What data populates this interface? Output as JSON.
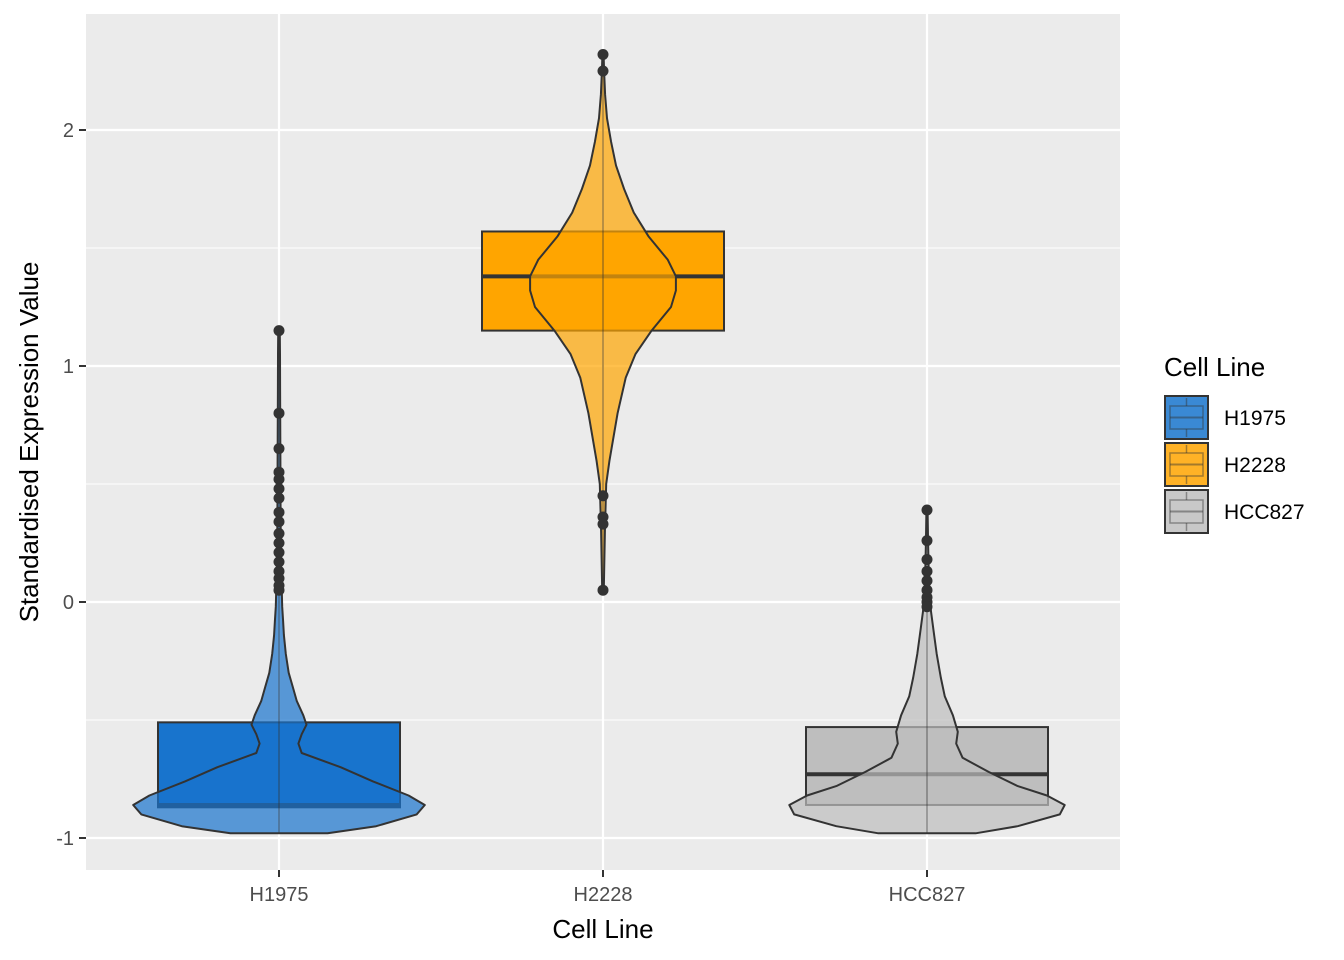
{
  "chart_data": {
    "type": "violin",
    "title": "",
    "xlabel": "Cell Line",
    "ylabel": "Standardised Expression Value",
    "categories": [
      "H1975",
      "H2228",
      "HCC827"
    ],
    "ylim": [
      -1.13,
      2.48
    ],
    "yticks": [
      -1,
      0,
      1,
      2
    ],
    "yticklabels": [
      "-1",
      "0",
      "1",
      "2"
    ],
    "grid": true,
    "legend": {
      "title": "Cell Line",
      "position": "right",
      "entries": [
        "H1975",
        "H2228",
        "HCC827"
      ]
    },
    "colors": {
      "H1975": "#1874CD",
      "H2228": "#FFA500",
      "HCC827": "#BEBEBE",
      "panel": "#EBEBEB",
      "grid": "#FFFFFF",
      "outline": "#333333"
    },
    "series": [
      {
        "name": "H1975",
        "box": {
          "lower": -0.87,
          "median": -0.86,
          "upper": -0.51
        },
        "violin": {
          "y": [
            -0.98,
            -0.95,
            -0.9,
            -0.86,
            -0.82,
            -0.76,
            -0.7,
            -0.64,
            -0.6,
            -0.56,
            -0.52,
            -0.48,
            -0.42,
            -0.36,
            -0.3,
            -0.22,
            -0.14,
            -0.08,
            -0.02,
            0.03,
            0.1,
            0.2,
            0.35,
            0.5,
            0.7,
            0.9,
            1.05,
            1.14
          ],
          "width": [
            0.3,
            0.6,
            0.85,
            0.9,
            0.8,
            0.58,
            0.38,
            0.14,
            0.12,
            0.14,
            0.17,
            0.15,
            0.11,
            0.085,
            0.06,
            0.042,
            0.03,
            0.025,
            0.02,
            0.018,
            0.014,
            0.012,
            0.01,
            0.009,
            0.008,
            0.007,
            0.006,
            0.005
          ]
        },
        "outliers": [
          1.15,
          0.8,
          0.65,
          0.55,
          0.52,
          0.48,
          0.44,
          0.38,
          0.34,
          0.29,
          0.25,
          0.21,
          0.17,
          0.13,
          0.1,
          0.07,
          0.05
        ]
      },
      {
        "name": "H2228",
        "box": {
          "lower": 1.15,
          "median": 1.38,
          "upper": 1.57
        },
        "violin": {
          "y": [
            0.05,
            0.3,
            0.5,
            0.6,
            0.8,
            0.95,
            1.05,
            1.15,
            1.25,
            1.32,
            1.38,
            1.45,
            1.55,
            1.65,
            1.75,
            1.85,
            1.95,
            2.05,
            2.15,
            2.25,
            2.32
          ],
          "width": [
            0.005,
            0.012,
            0.02,
            0.04,
            0.09,
            0.14,
            0.2,
            0.3,
            0.42,
            0.45,
            0.45,
            0.4,
            0.28,
            0.19,
            0.13,
            0.08,
            0.05,
            0.025,
            0.013,
            0.007,
            0.004
          ]
        },
        "outliers": [
          2.32,
          2.25,
          0.45,
          0.36,
          0.33,
          0.05
        ]
      },
      {
        "name": "HCC827",
        "box": {
          "lower": -0.86,
          "median": -0.73,
          "upper": -0.53
        },
        "violin": {
          "y": [
            -0.98,
            -0.95,
            -0.9,
            -0.86,
            -0.82,
            -0.78,
            -0.72,
            -0.66,
            -0.6,
            -0.55,
            -0.48,
            -0.4,
            -0.32,
            -0.22,
            -0.12,
            -0.04,
            0.05,
            0.15,
            0.25,
            0.33,
            0.39
          ],
          "width": [
            0.3,
            0.56,
            0.82,
            0.85,
            0.74,
            0.56,
            0.38,
            0.22,
            0.18,
            0.19,
            0.16,
            0.11,
            0.085,
            0.06,
            0.04,
            0.025,
            0.015,
            0.01,
            0.007,
            0.005,
            0.004
          ]
        },
        "outliers": [
          0.39,
          0.26,
          0.18,
          0.13,
          0.09,
          0.05,
          0.02,
          0.0,
          -0.02
        ]
      }
    ]
  }
}
